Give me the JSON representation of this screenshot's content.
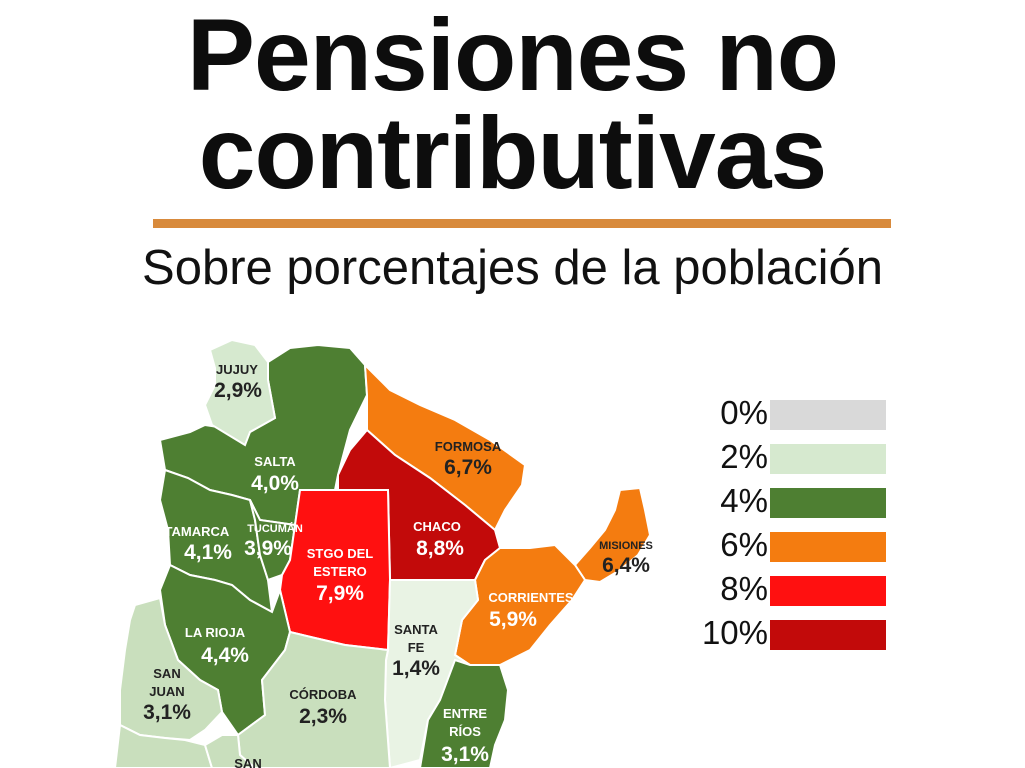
{
  "title": {
    "line1": "Pensiones no",
    "line2": "contributivas"
  },
  "subtitle": "Sobre porcentajes de la población",
  "accent_color": "#d88a3c",
  "legend": [
    {
      "label": "0%",
      "color": "#d9d9d9"
    },
    {
      "label": "2%",
      "color": "#d6e9cf"
    },
    {
      "label": "4%",
      "color": "#4e7f32"
    },
    {
      "label": "6%",
      "color": "#f47c10"
    },
    {
      "label": "8%",
      "color": "#ff1010"
    },
    {
      "label": "10%",
      "color": "#c20a0a"
    }
  ],
  "provinces": [
    {
      "id": "jujuy",
      "name": "JUJUY",
      "value": "2,9%",
      "fill": "#d6e9cf",
      "text_color": "#222222"
    },
    {
      "id": "salta",
      "name": "SALTA",
      "value": "4,0%",
      "fill": "#4e7f32",
      "text_color": "#ffffff"
    },
    {
      "id": "formosa",
      "name": "FORMOSA",
      "value": "6,7%",
      "fill": "#f47c10",
      "text_color": "#222222"
    },
    {
      "id": "chaco",
      "name": "CHACO",
      "value": "8,8%",
      "fill": "#c20a0a",
      "text_color": "#ffffff"
    },
    {
      "id": "catamarca",
      "name": "CATAMARCA",
      "value": "4,1%",
      "fill": "#4e7f32",
      "text_color": "#ffffff"
    },
    {
      "id": "tucuman",
      "name": "TUCUMÁN",
      "value": "3,9%",
      "fill": "#4e7f32",
      "text_color": "#ffffff"
    },
    {
      "id": "stgo",
      "name_lines": [
        "STGO DEL",
        "ESTERO"
      ],
      "value": "7,9%",
      "fill": "#ff1010",
      "text_color": "#ffffff"
    },
    {
      "id": "misiones",
      "name": "MISIONES",
      "value": "6,4%",
      "fill": "#f47c10",
      "text_color": "#222222"
    },
    {
      "id": "corrientes",
      "name": "CORRIENTES",
      "value": "5,9%",
      "fill": "#f47c10",
      "text_color": "#ffffff"
    },
    {
      "id": "santafe",
      "name_lines": [
        "SANTA",
        "FE"
      ],
      "value": "1,4%",
      "fill": "#e9f3e4",
      "text_color": "#222222"
    },
    {
      "id": "larioja",
      "name": "LA RIOJA",
      "value": "4,4%",
      "fill": "#4e7f32",
      "text_color": "#ffffff"
    },
    {
      "id": "sanjuan",
      "name_lines": [
        "SAN",
        "JUAN"
      ],
      "value": "3,1%",
      "fill": "#c9dfbd",
      "text_color": "#222222"
    },
    {
      "id": "cordoba",
      "name": "CÓRDOBA",
      "value": "2,3%",
      "fill": "#c9dfbd",
      "text_color": "#222222"
    },
    {
      "id": "entrerios",
      "name_lines": [
        "ENTRE",
        "RÍOS"
      ],
      "value": "3,1%",
      "fill": "#4e7f32",
      "text_color": "#ffffff"
    },
    {
      "id": "sanluis",
      "name": "SAN",
      "fill": "#c9dfbd",
      "text_color": "#222222"
    },
    {
      "id": "mendoza",
      "fill": "#c9dfbd"
    }
  ]
}
